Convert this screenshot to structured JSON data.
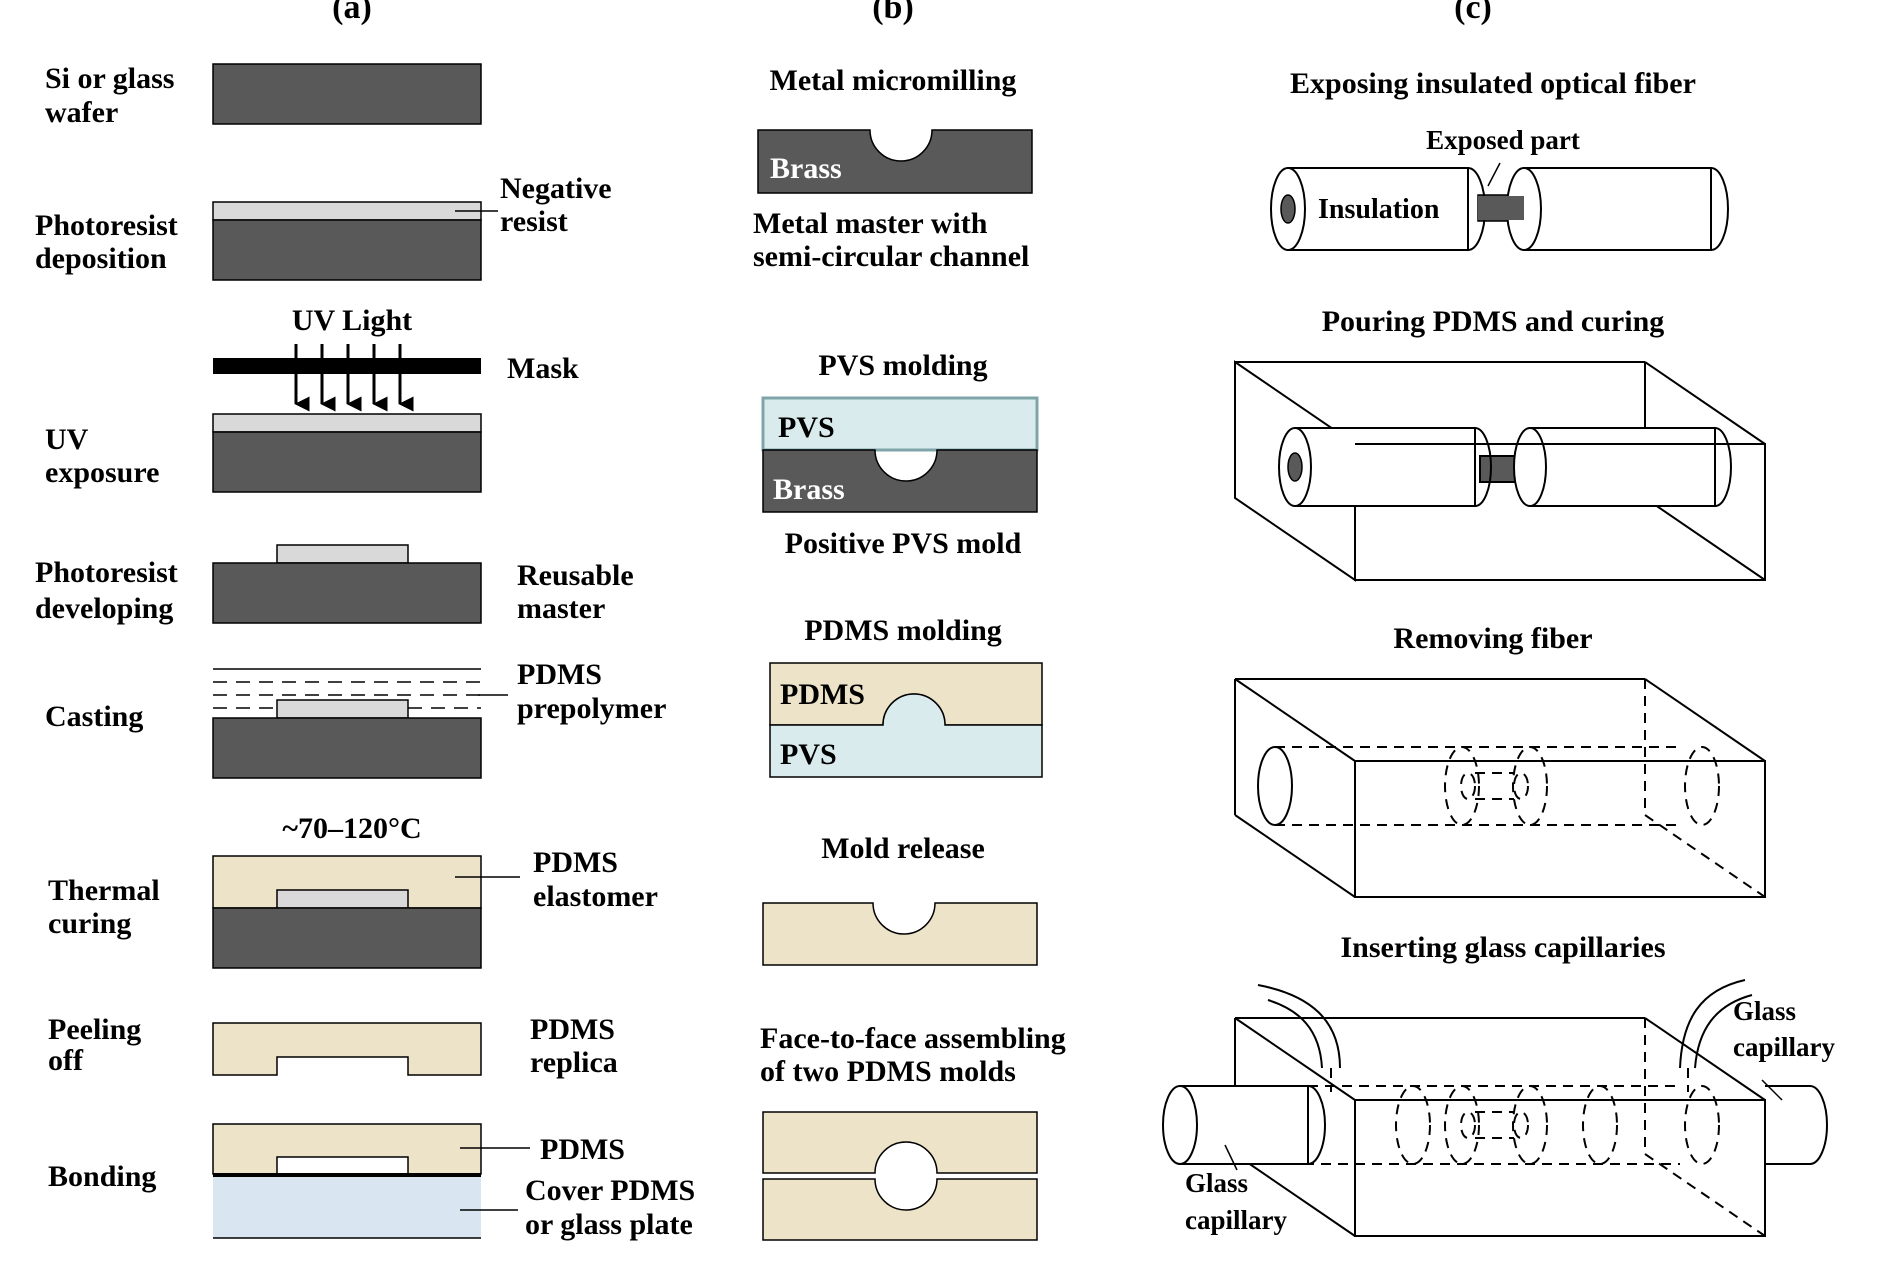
{
  "colors": {
    "substrate": "#595959",
    "resist": "#d9d9d9",
    "pdms": "#ede3c8",
    "pvs": "#daebed",
    "glass": "#d9e6f2",
    "fiber_core": "#595959",
    "stroke": "#000000"
  },
  "panel_a": {
    "label": "(a)",
    "steps": {
      "wafer": {
        "l1": "Si or glass",
        "l2": "wafer"
      },
      "deposition": {
        "l1": "Photoresist",
        "l2": "deposition",
        "note1": "Negative",
        "note2": "resist"
      },
      "uv": {
        "light": "UV Light",
        "mask": "Mask",
        "l1": "UV",
        "l2": "exposure"
      },
      "developing": {
        "l1": "Photoresist",
        "l2": "developing",
        "note1": "Reusable",
        "note2": "master"
      },
      "casting": {
        "l1": "Casting",
        "note1": "PDMS",
        "note2": "prepolymer"
      },
      "curing": {
        "temp": "~70–120°C",
        "l1": "Thermal",
        "l2": "curing",
        "note1": "PDMS",
        "note2": "elastomer"
      },
      "peeling": {
        "l1": "Peeling",
        "l2": "off",
        "note1": "PDMS",
        "note2": "replica"
      },
      "bonding": {
        "l1": "Bonding",
        "note1": "PDMS",
        "note2": "Cover PDMS",
        "note3": "or glass plate"
      }
    }
  },
  "panel_b": {
    "label": "(b)",
    "steps": {
      "milling": {
        "title": "Metal micromilling",
        "block": "Brass",
        "cap1": "Metal master with",
        "cap2": "semi-circular channel"
      },
      "pvs": {
        "title": "PVS molding",
        "top": "PVS",
        "bottom": "Brass",
        "cap": "Positive PVS mold"
      },
      "pdms": {
        "title": "PDMS molding",
        "top": "PDMS",
        "bottom": "PVS"
      },
      "release": {
        "title": "Mold release"
      },
      "assembly": {
        "title1": "Face-to-face assembling",
        "title2": "of two PDMS molds"
      }
    }
  },
  "panel_c": {
    "label": "(c)",
    "steps": {
      "exposing": {
        "title": "Exposing insulated optical fiber",
        "exposed": "Exposed part",
        "insulation": "Insulation"
      },
      "pouring": {
        "title": "Pouring PDMS and curing"
      },
      "removing": {
        "title": "Removing fiber"
      },
      "inserting": {
        "title": "Inserting glass capillaries",
        "right1": "Glass",
        "right2": "capillary",
        "left1": "Glass",
        "left2": "capillary"
      }
    }
  }
}
